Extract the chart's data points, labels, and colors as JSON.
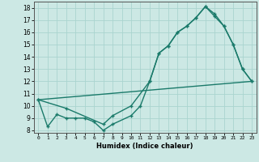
{
  "xlabel": "Humidex (Indice chaleur)",
  "background_color": "#cce8e4",
  "grid_color": "#aad4cf",
  "line_color": "#1a7a6a",
  "xlim": [
    -0.5,
    23.5
  ],
  "ylim": [
    7.8,
    18.5
  ],
  "xticks": [
    0,
    1,
    2,
    3,
    4,
    5,
    6,
    7,
    8,
    9,
    10,
    11,
    12,
    13,
    14,
    15,
    16,
    17,
    18,
    19,
    20,
    21,
    22,
    23
  ],
  "yticks": [
    8,
    9,
    10,
    11,
    12,
    13,
    14,
    15,
    16,
    17,
    18
  ],
  "line1_x": [
    0,
    1,
    2,
    3,
    4,
    5,
    6,
    7,
    8,
    10,
    11,
    12,
    13,
    14,
    15,
    16,
    17,
    18,
    19,
    20,
    21,
    22,
    23
  ],
  "line1_y": [
    10.5,
    8.3,
    9.3,
    9.0,
    9.0,
    9.0,
    8.7,
    8.0,
    8.5,
    9.2,
    10.0,
    12.0,
    14.3,
    14.9,
    16.0,
    16.5,
    17.2,
    18.1,
    17.5,
    16.5,
    15.0,
    13.0,
    12.0
  ],
  "line2_x": [
    0,
    3,
    7,
    8,
    10,
    12,
    13,
    14,
    15,
    16,
    17,
    18,
    19,
    20,
    21,
    22,
    23
  ],
  "line2_y": [
    10.5,
    9.8,
    8.5,
    9.2,
    10.0,
    12.0,
    14.3,
    14.9,
    16.0,
    16.5,
    17.2,
    18.1,
    17.3,
    16.5,
    15.0,
    13.0,
    12.0
  ],
  "line3_x": [
    0,
    23
  ],
  "line3_y": [
    10.5,
    12.0
  ]
}
